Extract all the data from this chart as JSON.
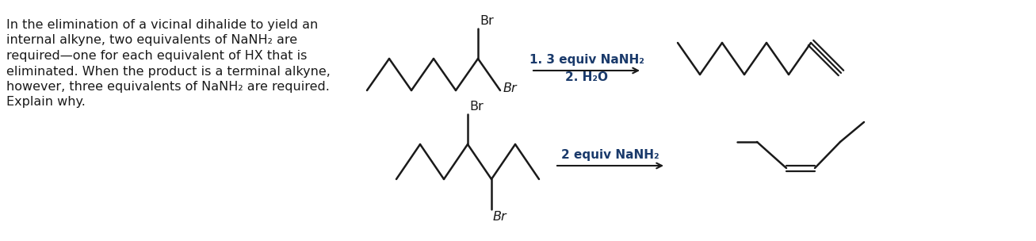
{
  "bg_color": "#ffffff",
  "text_color": "#1a1a1a",
  "text_dark": "#1a1a1a",
  "paragraph_lines": [
    "In the elimination of a vicinal dihalide to yield an",
    "internal alkyne, two equivalents of NaNH₂ are",
    "required—one for each equivalent of HX that is",
    "eliminated. When the product is a terminal alkyne,",
    "however, three equivalents of NaNH₂ are required.",
    "Explain why."
  ],
  "reaction1_label": "2 equiv NaNH₂",
  "reaction2_label1": "1. 3 equiv NaNH₂",
  "reaction2_label2": "2. H₂O",
  "br_label": "Br",
  "line_color": "#1a1a1a",
  "font_size_text": 11.5,
  "font_size_label": 11.0,
  "font_size_br": 11.5
}
